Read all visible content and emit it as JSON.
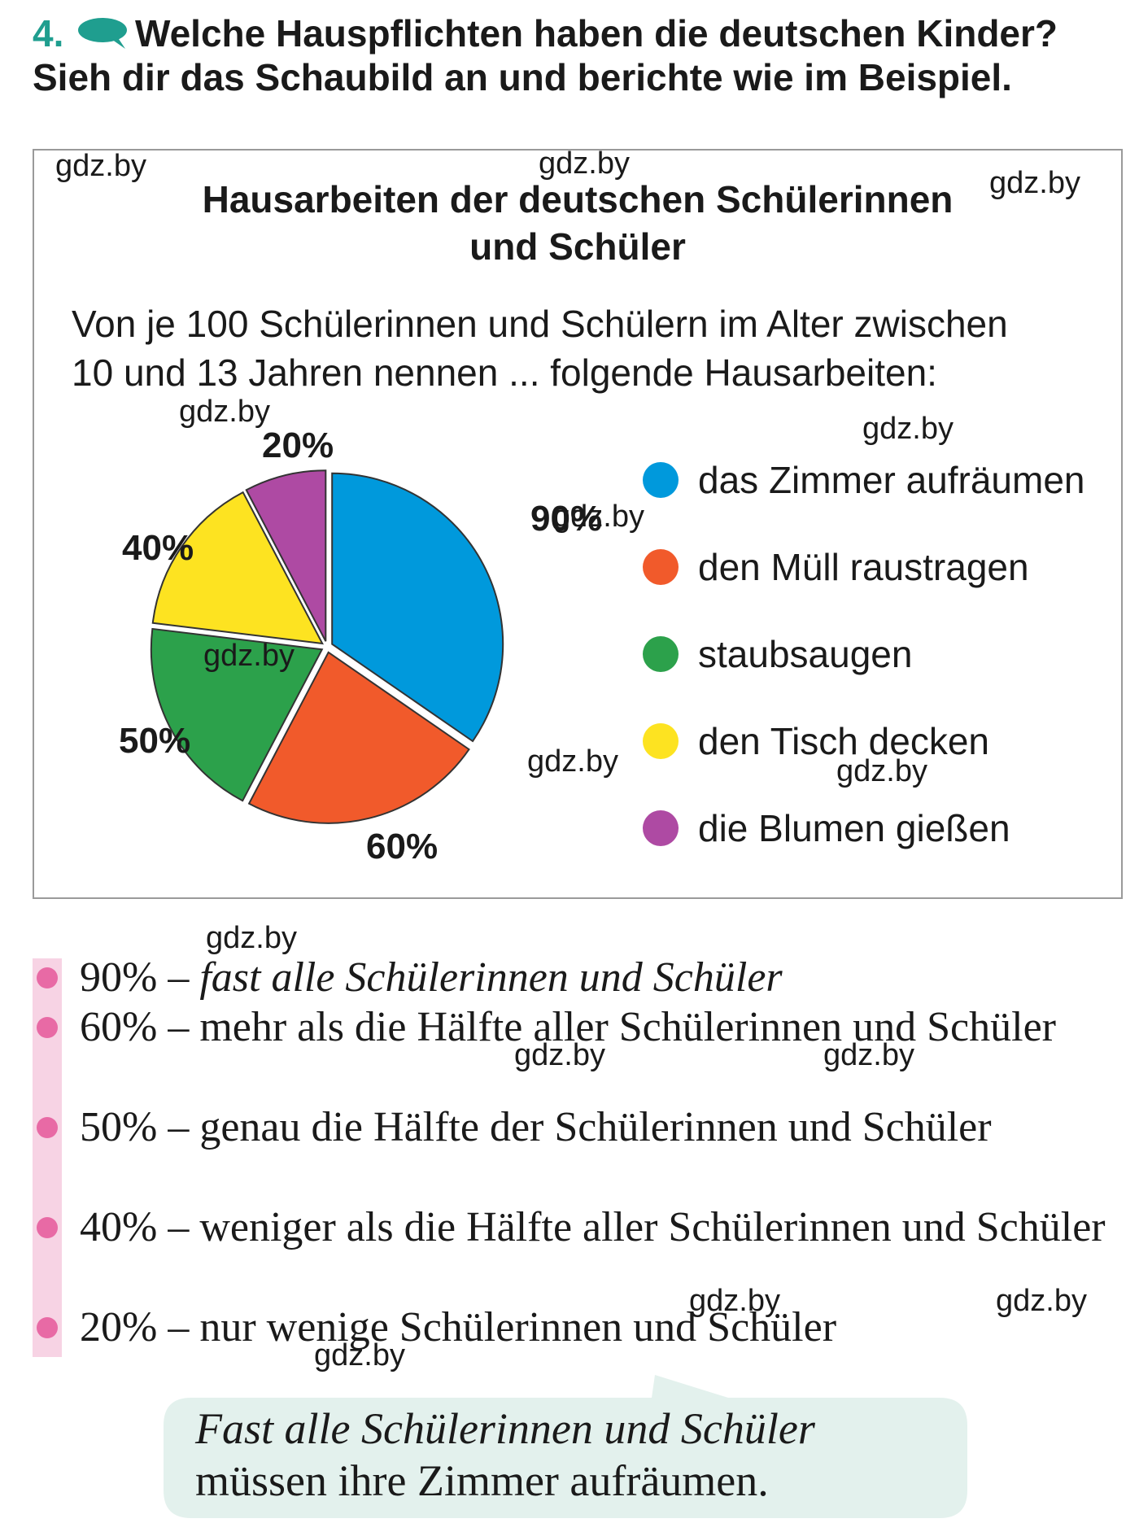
{
  "task": {
    "number": "4.",
    "icon": "speech-bubble-icon",
    "line1": "Welche Hauspflichten haben die deutschen Kinder?",
    "line2": "Sieh dir das Schaubild an und berichte wie im Beispiel."
  },
  "chart": {
    "title_line1": "Hausarbeiten der deutschen Schülerinnen",
    "title_line2": "und Schüler",
    "subtitle_line1": "Von je 100 Schülerinnen und Schülern im Alter zwischen",
    "subtitle_line2": "10 und 13 Jahren nennen ... folgende Hausarbeiten:"
  },
  "chart_data": {
    "type": "pie",
    "categories": [
      "das Zimmer aufräumen",
      "den Müll raustragen",
      "staubsaugen",
      "den Tisch decken",
      "die Blumen gießen"
    ],
    "values": [
      90,
      60,
      50,
      40,
      20
    ],
    "value_labels": [
      "90%",
      "60%",
      "50%",
      "40%",
      "20%"
    ],
    "colors": [
      "#0099dc",
      "#f15a2b",
      "#2ca14b",
      "#fde321",
      "#ae4aa3"
    ],
    "legend_position": "right"
  },
  "watermark": "gdz.by",
  "list": {
    "items": [
      {
        "percent": "90%",
        "dash": "–",
        "text": "fast alle Schülerinnen und Schüler"
      },
      {
        "percent": "60%",
        "dash": "–",
        "text": "mehr als die Hälfte aller Schülerinnen und Schüler"
      },
      {
        "percent": "50%",
        "dash": "–",
        "text": "genau die Hälfte der Schülerinnen und Schüler"
      },
      {
        "percent": "40%",
        "dash": "–",
        "text": "weniger als die Hälfte aller Schülerinnen und Schüler"
      },
      {
        "percent": "20%",
        "dash": "–",
        "text": "nur wenige Schülerinnen und Schüler"
      }
    ]
  },
  "example": {
    "line1": "Fast alle Schülerinnen und Schüler",
    "line2": "müssen ihre Zimmer aufräumen."
  }
}
